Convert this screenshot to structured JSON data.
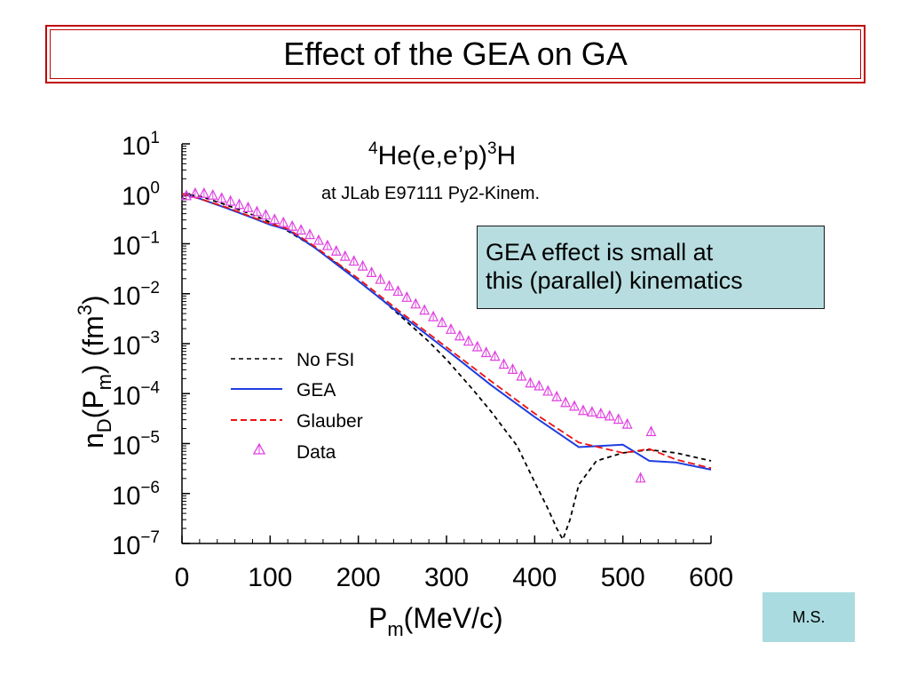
{
  "slide": {
    "title": "Effect of the GEA on GA",
    "callout_lines": [
      "GEA effect is small at",
      "this (parallel) kinematics"
    ],
    "author_tag": "M.S."
  },
  "chart_data": {
    "type": "line",
    "title": {
      "base": "He(e,e’p)",
      "sup_left": "4",
      "sup_right": "3",
      "tail": "H"
    },
    "subtitle": "at JLab E97111 Py2-Kinem.",
    "xlabel": {
      "main": "P",
      "sub": "m",
      "rest": "(MeV/c)"
    },
    "ylabel": {
      "n": "n",
      "d_sub": "D",
      "open": "(P",
      "m_sub": "m",
      "close": ") (fm",
      "sup": "3",
      "end": ")"
    },
    "x_range": [
      0,
      600
    ],
    "y_scale": "log",
    "y_range": [
      1e-07,
      10
    ],
    "x_ticks": [
      "0",
      "100",
      "200",
      "300",
      "400",
      "500",
      "600"
    ],
    "y_ticks": [
      {
        "exp": "1"
      },
      {
        "exp": "0"
      },
      {
        "exp": "−1"
      },
      {
        "exp": "−2"
      },
      {
        "exp": "−3"
      },
      {
        "exp": "−4"
      },
      {
        "exp": "−5"
      },
      {
        "exp": "−6"
      },
      {
        "exp": "−7"
      }
    ],
    "y_tick_base": "10",
    "grid": false,
    "legend_position": "lower-left",
    "series": [
      {
        "name": "No FSI",
        "color": "#000000",
        "style": "dashed",
        "x": [
          0,
          20,
          50,
          80,
          100,
          120,
          150,
          180,
          200,
          230,
          250,
          280,
          300,
          330,
          350,
          380,
          400,
          415,
          425,
          432,
          440,
          450,
          470,
          500,
          530,
          560,
          600
        ],
        "y": [
          1.0,
          0.9,
          0.6,
          0.38,
          0.27,
          0.18,
          0.085,
          0.035,
          0.018,
          0.0068,
          0.0033,
          0.0011,
          0.00048,
          0.00012,
          4.5e-05,
          9e-06,
          1.7e-06,
          5e-07,
          2e-07,
          1.2e-07,
          3e-07,
          1.5e-06,
          4.5e-06,
          6.5e-06,
          7.5e-06,
          6.5e-06,
          4.5e-06
        ]
      },
      {
        "name": "GEA",
        "color": "#1f3de0",
        "style": "solid",
        "x": [
          0,
          20,
          50,
          80,
          100,
          120,
          150,
          200,
          250,
          300,
          350,
          400,
          450,
          500,
          530,
          560,
          600
        ],
        "y": [
          1.0,
          0.8,
          0.52,
          0.33,
          0.24,
          0.19,
          0.085,
          0.018,
          0.0036,
          0.00075,
          0.00015,
          3.4e-05,
          8.5e-06,
          9.5e-06,
          4.5e-06,
          4.2e-06,
          3e-06
        ]
      },
      {
        "name": "Glauber",
        "color": "#ee1111",
        "style": "dashed",
        "x": [
          0,
          20,
          50,
          80,
          100,
          120,
          150,
          200,
          250,
          300,
          350,
          400,
          450,
          500,
          530,
          560,
          600
        ],
        "y": [
          1.0,
          0.8,
          0.54,
          0.34,
          0.25,
          0.2,
          0.09,
          0.02,
          0.004,
          0.00085,
          0.00018,
          4e-05,
          1.05e-05,
          6.5e-06,
          7.8e-06,
          4.8e-06,
          3.2e-06
        ]
      },
      {
        "name": "Data",
        "color": "#e040e0",
        "style": "markers",
        "x": [
          5,
          15,
          25,
          35,
          45,
          55,
          65,
          75,
          85,
          95,
          105,
          115,
          125,
          135,
          145,
          155,
          165,
          175,
          185,
          195,
          205,
          215,
          225,
          235,
          245,
          255,
          265,
          275,
          285,
          295,
          305,
          315,
          325,
          335,
          345,
          355,
          365,
          375,
          385,
          395,
          405,
          415,
          425,
          435,
          445,
          455,
          465,
          475,
          485,
          495,
          505,
          520,
          532
        ],
        "y": [
          0.9,
          1.0,
          1.0,
          0.92,
          0.8,
          0.7,
          0.6,
          0.52,
          0.43,
          0.37,
          0.3,
          0.26,
          0.22,
          0.185,
          0.15,
          0.115,
          0.09,
          0.07,
          0.055,
          0.044,
          0.035,
          0.026,
          0.019,
          0.014,
          0.011,
          0.0083,
          0.0061,
          0.0046,
          0.0034,
          0.0026,
          0.0019,
          0.0014,
          0.0011,
          0.00085,
          0.00065,
          0.00055,
          0.00038,
          0.0003,
          0.00022,
          0.00016,
          0.00014,
          0.00011,
          8.5e-05,
          6.5e-05,
          5.5e-05,
          4.5e-05,
          4.2e-05,
          3.9e-05,
          3.5e-05,
          3e-05,
          2.4e-05,
          2e-06,
          1.7e-05
        ]
      }
    ]
  }
}
